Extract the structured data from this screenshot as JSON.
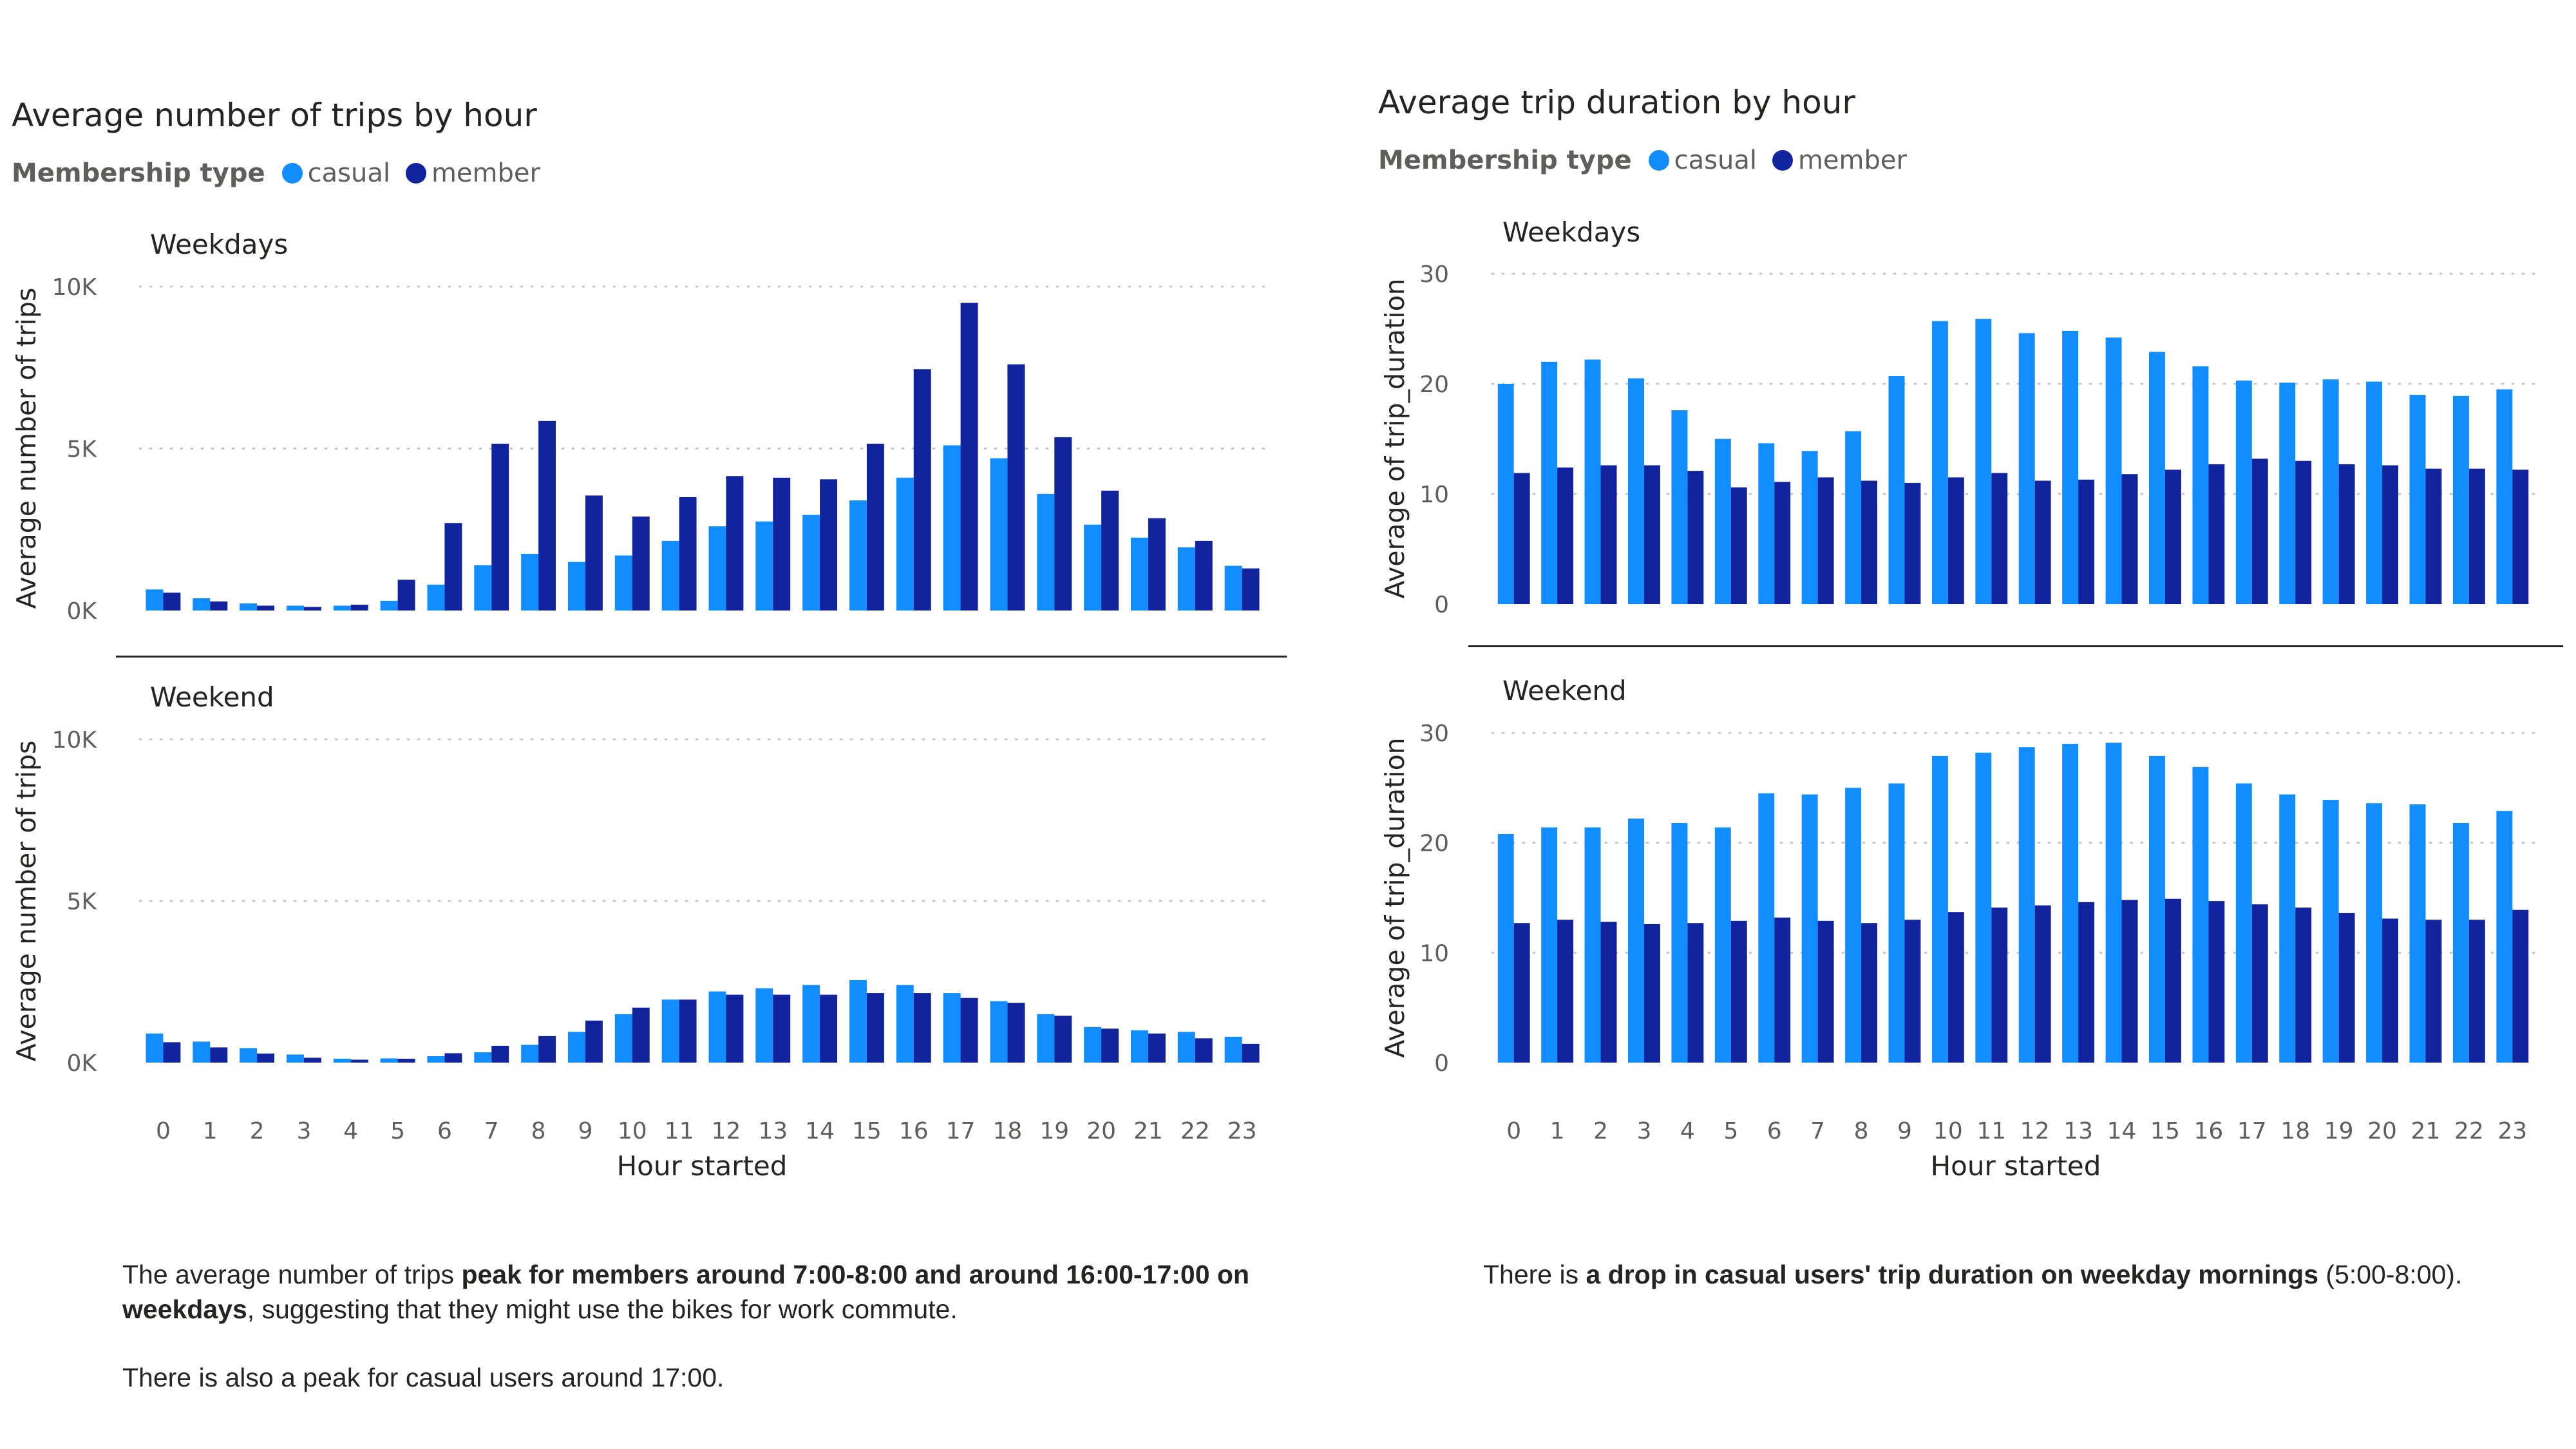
{
  "colors": {
    "casual": "#118dff",
    "member": "#12239e",
    "grid": "#c8c6c4",
    "axis_text": "#605e5c"
  },
  "left": {
    "title": "Average number of trips by hour",
    "legend": {
      "title": "Membership type",
      "items": [
        "casual",
        "member"
      ]
    },
    "xlabel": "Hour started"
  },
  "right": {
    "title": "Average trip duration by hour",
    "legend": {
      "title": "Membership type",
      "items": [
        "casual",
        "member"
      ]
    },
    "xlabel": "Hour started"
  },
  "chart_data": [
    {
      "type": "bar",
      "title": "Weekdays",
      "ylabel": "Average number of trips",
      "categories": [
        "0",
        "1",
        "2",
        "3",
        "4",
        "5",
        "6",
        "7",
        "8",
        "9",
        "10",
        "11",
        "12",
        "13",
        "14",
        "15",
        "16",
        "17",
        "18",
        "19",
        "20",
        "21",
        "22",
        "23"
      ],
      "ylim": [
        0,
        10000
      ],
      "yticks": [
        0,
        5000,
        10000
      ],
      "ytick_labels": [
        "0K",
        "5K",
        "10K"
      ],
      "grid": true,
      "series": [
        {
          "name": "casual",
          "values": [
            650,
            380,
            220,
            150,
            150,
            300,
            800,
            1400,
            1750,
            1500,
            1700,
            2150,
            2600,
            2750,
            2950,
            3400,
            4100,
            5100,
            4700,
            3600,
            2650,
            2250,
            1950,
            1380
          ]
        },
        {
          "name": "member",
          "values": [
            550,
            280,
            150,
            110,
            180,
            950,
            2700,
            5150,
            5850,
            3550,
            2900,
            3500,
            4150,
            4100,
            4050,
            5150,
            7450,
            9500,
            7600,
            5350,
            3700,
            2850,
            2150,
            1300
          ]
        }
      ]
    },
    {
      "type": "bar",
      "title": "Weekend",
      "ylabel": "Average number of trips",
      "categories": [
        "0",
        "1",
        "2",
        "3",
        "4",
        "5",
        "6",
        "7",
        "8",
        "9",
        "10",
        "11",
        "12",
        "13",
        "14",
        "15",
        "16",
        "17",
        "18",
        "19",
        "20",
        "21",
        "22",
        "23"
      ],
      "ylim": [
        0,
        10000
      ],
      "yticks": [
        0,
        5000,
        10000
      ],
      "ytick_labels": [
        "0K",
        "5K",
        "10K"
      ],
      "grid": true,
      "series": [
        {
          "name": "casual",
          "values": [
            900,
            650,
            450,
            250,
            120,
            130,
            200,
            320,
            550,
            950,
            1500,
            1950,
            2200,
            2300,
            2400,
            2550,
            2400,
            2150,
            1900,
            1500,
            1100,
            1000,
            950,
            800
          ]
        },
        {
          "name": "member",
          "values": [
            630,
            470,
            280,
            150,
            90,
            120,
            290,
            520,
            820,
            1300,
            1700,
            1950,
            2100,
            2100,
            2100,
            2150,
            2150,
            2000,
            1850,
            1450,
            1050,
            900,
            750,
            580
          ]
        }
      ]
    },
    {
      "type": "bar",
      "title": "Weekdays",
      "ylabel": "Average of trip_duration",
      "categories": [
        "0",
        "1",
        "2",
        "3",
        "4",
        "5",
        "6",
        "7",
        "8",
        "9",
        "10",
        "11",
        "12",
        "13",
        "14",
        "15",
        "16",
        "17",
        "18",
        "19",
        "20",
        "21",
        "22",
        "23"
      ],
      "ylim": [
        0,
        30
      ],
      "yticks": [
        0,
        10,
        20,
        30
      ],
      "ytick_labels": [
        "0",
        "10",
        "20",
        "30"
      ],
      "grid": true,
      "series": [
        {
          "name": "casual",
          "values": [
            20.0,
            22.0,
            22.2,
            20.5,
            17.6,
            15.0,
            14.6,
            13.9,
            15.7,
            20.7,
            25.7,
            25.9,
            24.6,
            24.8,
            24.2,
            22.9,
            21.6,
            20.3,
            20.1,
            20.4,
            20.2,
            19.0,
            18.9,
            19.5
          ]
        },
        {
          "name": "member",
          "values": [
            11.9,
            12.4,
            12.6,
            12.6,
            12.1,
            10.6,
            11.1,
            11.5,
            11.2,
            11.0,
            11.5,
            11.9,
            11.2,
            11.3,
            11.8,
            12.2,
            12.7,
            13.2,
            13.0,
            12.7,
            12.6,
            12.3,
            12.3,
            12.2
          ]
        }
      ]
    },
    {
      "type": "bar",
      "title": "Weekend",
      "ylabel": "Average of trip_duration",
      "categories": [
        "0",
        "1",
        "2",
        "3",
        "4",
        "5",
        "6",
        "7",
        "8",
        "9",
        "10",
        "11",
        "12",
        "13",
        "14",
        "15",
        "16",
        "17",
        "18",
        "19",
        "20",
        "21",
        "22",
        "23"
      ],
      "ylim": [
        0,
        30
      ],
      "yticks": [
        0,
        10,
        20,
        30
      ],
      "ytick_labels": [
        "0",
        "10",
        "20",
        "30"
      ],
      "grid": true,
      "series": [
        {
          "name": "casual",
          "values": [
            20.8,
            21.4,
            21.4,
            22.2,
            21.8,
            21.4,
            24.5,
            24.4,
            25.0,
            25.4,
            27.9,
            28.2,
            28.7,
            29.0,
            29.1,
            27.9,
            26.9,
            25.4,
            24.4,
            23.9,
            23.6,
            23.5,
            21.8,
            22.9
          ]
        },
        {
          "name": "member",
          "values": [
            12.7,
            13.0,
            12.8,
            12.6,
            12.7,
            12.9,
            13.2,
            12.9,
            12.7,
            13.0,
            13.7,
            14.1,
            14.3,
            14.6,
            14.8,
            14.9,
            14.7,
            14.4,
            14.1,
            13.6,
            13.1,
            13.0,
            13.0,
            13.9
          ]
        }
      ]
    }
  ],
  "notes": {
    "left_p1_a": "The average number of trips ",
    "left_p1_b": "peak for members around 7:00-8:00 and around 16:00-17:00 on weekdays",
    "left_p1_c": ", suggesting that they might use the bikes for work commute.",
    "left_p2": "There is also a peak for casual users around 17:00.",
    "right_a": "There is ",
    "right_b": "a drop in casual users' trip duration on weekday mornings",
    "right_c": " (5:00-8:00)."
  }
}
